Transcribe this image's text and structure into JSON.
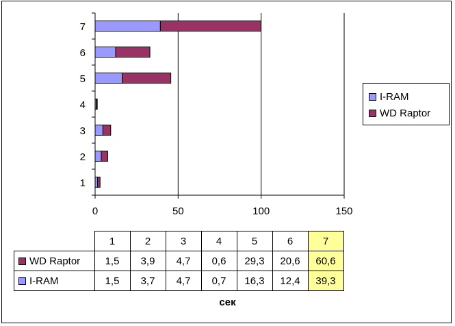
{
  "chart_data": {
    "type": "bar",
    "orientation": "horizontal",
    "stacked": true,
    "categories": [
      "1",
      "2",
      "3",
      "4",
      "5",
      "6",
      "7"
    ],
    "series": [
      {
        "name": "I-RAM",
        "values": [
          1.5,
          3.7,
          4.7,
          0.7,
          16.3,
          12.4,
          39.3
        ],
        "color": "#9999ff"
      },
      {
        "name": "WD Raptor",
        "values": [
          1.5,
          3.9,
          4.7,
          0.6,
          29.3,
          20.6,
          60.6
        ],
        "color": "#993366"
      }
    ],
    "xlim": [
      0,
      150
    ],
    "x_ticks": [
      "0",
      "50",
      "100",
      "150"
    ],
    "xlabel": "сек",
    "grid": "vertical",
    "legend_position": "right",
    "highlight_category": "7",
    "highlight_color": "#ffff99",
    "table": {
      "rows": [
        {
          "series": "WD Raptor",
          "cells": [
            "1,5",
            "3,9",
            "4,7",
            "0,6",
            "29,3",
            "20,6",
            "60,6"
          ]
        },
        {
          "series": "I-RAM",
          "cells": [
            "1,5",
            "3,7",
            "4,7",
            "0,7",
            "16,3",
            "12,4",
            "39,3"
          ]
        }
      ]
    }
  }
}
